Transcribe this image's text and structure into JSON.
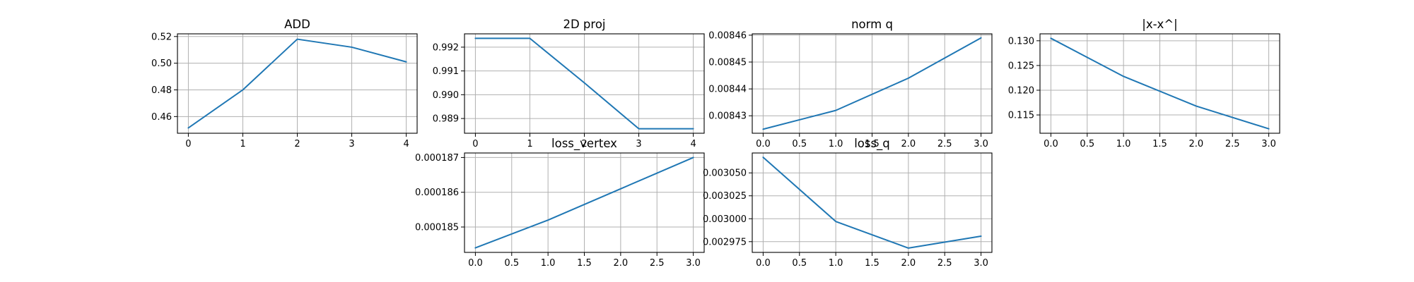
{
  "chart_data": [
    {
      "type": "line",
      "title": "ADD",
      "x": [
        0,
        1,
        2,
        3,
        4
      ],
      "y": [
        0.4515,
        0.48,
        0.518,
        0.512,
        0.501
      ],
      "xlim": [
        -0.2,
        4.2
      ],
      "ylim": [
        0.4475,
        0.522
      ],
      "xticks": [
        0,
        1,
        2,
        3,
        4
      ],
      "xtick_labels": [
        "0",
        "1",
        "2",
        "3",
        "4"
      ],
      "yticks": [
        0.46,
        0.48,
        0.5,
        0.52
      ],
      "ytick_labels": [
        "0.46",
        "0.48",
        "0.50",
        "0.52"
      ],
      "grid": true,
      "color": "#1f77b4"
    },
    {
      "type": "line",
      "title": "2D proj",
      "x": [
        0,
        1,
        2,
        3,
        4
      ],
      "y": [
        0.99237,
        0.99237,
        0.9905,
        0.98857,
        0.98857
      ],
      "xlim": [
        -0.2,
        4.2
      ],
      "ylim": [
        0.98838,
        0.99256
      ],
      "xticks": [
        0,
        1,
        2,
        3,
        4
      ],
      "xtick_labels": [
        "0",
        "1",
        "2",
        "3",
        "4"
      ],
      "yticks": [
        0.989,
        0.99,
        0.991,
        0.992
      ],
      "ytick_labels": [
        "0.989",
        "0.990",
        "0.991",
        "0.992"
      ],
      "grid": true,
      "color": "#1f77b4"
    },
    {
      "type": "line",
      "title": "norm q",
      "x": [
        0,
        1,
        2,
        3
      ],
      "y": [
        0.008425,
        0.008432,
        0.008444,
        0.008459
      ],
      "xlim": [
        -0.15,
        3.15
      ],
      "ylim": [
        0.0084235,
        0.0084605
      ],
      "xticks": [
        0,
        0.5,
        1,
        1.5,
        2,
        2.5,
        3
      ],
      "xtick_labels": [
        "0.0",
        "0.5",
        "1.0",
        "1.5",
        "2.0",
        "2.5",
        "3.0"
      ],
      "yticks": [
        0.00843,
        0.00844,
        0.00845,
        0.00846
      ],
      "ytick_labels": [
        "0.00843",
        "0.00844",
        "0.00845",
        "0.00846"
      ],
      "grid": true,
      "color": "#1f77b4"
    },
    {
      "type": "line",
      "title": "|x-x^|",
      "x": [
        0,
        1,
        2,
        3
      ],
      "y": [
        0.1305,
        0.1228,
        0.1168,
        0.1122
      ],
      "xlim": [
        -0.15,
        3.15
      ],
      "ylim": [
        0.1113,
        0.1314
      ],
      "xticks": [
        0,
        0.5,
        1,
        1.5,
        2,
        2.5,
        3
      ],
      "xtick_labels": [
        "0.0",
        "0.5",
        "1.0",
        "1.5",
        "2.0",
        "2.5",
        "3.0"
      ],
      "yticks": [
        0.115,
        0.12,
        0.125,
        0.13
      ],
      "ytick_labels": [
        "0.115",
        "0.120",
        "0.125",
        "0.130"
      ],
      "grid": true,
      "color": "#1f77b4"
    },
    {
      "type": "line",
      "title": "loss_vertex",
      "x": [
        0,
        1,
        2,
        3
      ],
      "y": [
        0.0001844,
        0.0001852,
        0.0001861,
        0.000187
      ],
      "xlim": [
        -0.15,
        3.15
      ],
      "ylim": [
        0.00018427,
        0.00018713
      ],
      "xticks": [
        0,
        0.5,
        1,
        1.5,
        2,
        2.5,
        3
      ],
      "xtick_labels": [
        "0.0",
        "0.5",
        "1.0",
        "1.5",
        "2.0",
        "2.5",
        "3.0"
      ],
      "yticks": [
        0.000185,
        0.000186,
        0.000187
      ],
      "ytick_labels": [
        "0.000185",
        "0.000186",
        "0.000187"
      ],
      "grid": true,
      "color": "#1f77b4"
    },
    {
      "type": "line",
      "title": "loss_q",
      "x": [
        0,
        1,
        2,
        3
      ],
      "y": [
        0.003067,
        0.002997,
        0.002968,
        0.002981
      ],
      "xlim": [
        -0.15,
        3.15
      ],
      "ylim": [
        0.0029633,
        0.0030717
      ],
      "xticks": [
        0,
        0.5,
        1,
        1.5,
        2,
        2.5,
        3
      ],
      "xtick_labels": [
        "0.0",
        "0.5",
        "1.0",
        "1.5",
        "2.0",
        "2.5",
        "3.0"
      ],
      "yticks": [
        0.002975,
        0.003,
        0.003025,
        0.00305
      ],
      "ytick_labels": [
        "0.002975",
        "0.003000",
        "0.003025",
        "0.003050"
      ],
      "grid": true,
      "color": "#1f77b4"
    }
  ]
}
